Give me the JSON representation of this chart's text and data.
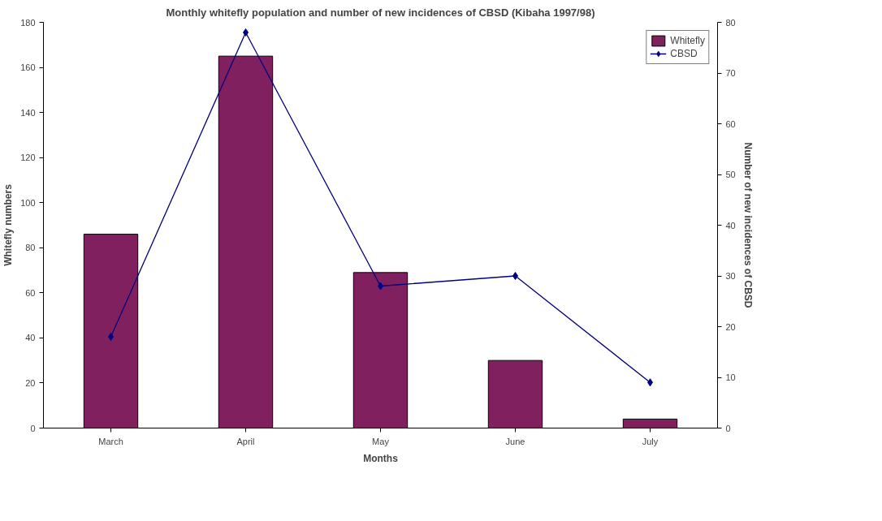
{
  "chart_data": {
    "type": "bar",
    "title": "Monthly whitefly population and number of new incidences of CBSD (Kibaha 1997/98)",
    "xlabel": "Months",
    "ylabel": "Whitefly numbers",
    "y2label": "Number of new incidences of CBSD",
    "categories": [
      "March",
      "April",
      "May",
      "June",
      "July"
    ],
    "series": [
      {
        "name": "Whitefly",
        "color": "#80205f",
        "values": [
          86,
          165,
          69,
          30,
          4
        ]
      },
      {
        "name": "CBSD",
        "type": "line",
        "axis": "y2",
        "color": "#000080",
        "values": [
          18,
          78,
          28,
          30,
          9
        ],
        "marker": "diamond",
        "line_style": "solid"
      }
    ],
    "ylim": [
      0,
      180
    ],
    "yticks": [
      0,
      20,
      40,
      60,
      80,
      100,
      120,
      140,
      160,
      180
    ],
    "y2lim": [
      0,
      80
    ],
    "y2ticks": [
      0,
      10,
      20,
      30,
      40,
      50,
      60,
      70,
      80
    ],
    "grid": false,
    "legend": "top right"
  }
}
